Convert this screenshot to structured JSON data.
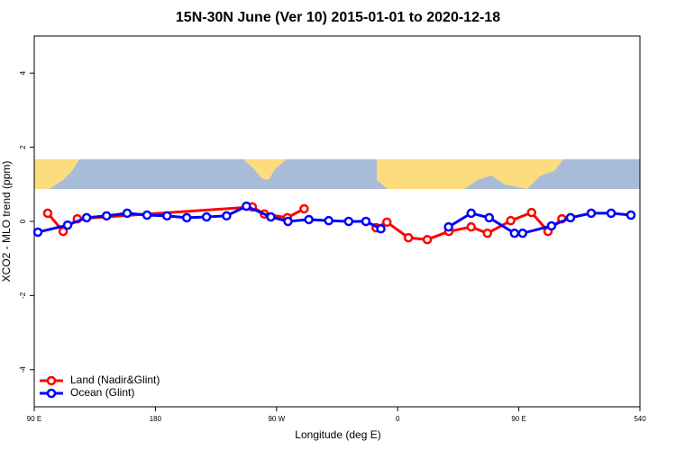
{
  "chart_data": {
    "type": "line",
    "title": "15N-30N June (Ver 10)   2015-01-01 to 2020-12-18",
    "x_label": "Longitude (deg E)",
    "y_label": "XCO2 - MLO trend (ppm)",
    "xlim": [
      90,
      540
    ],
    "xticks": [
      {
        "value": 90,
        "label": "90 E"
      },
      180,
      {
        "value": 270,
        "label": "90 W"
      },
      {
        "value": 360,
        "label": "0"
      },
      {
        "value": 450,
        "label": "90 E"
      },
      540
    ],
    "ylim": [
      -5,
      5
    ],
    "yticks": [
      -4,
      -2,
      0,
      2,
      4
    ],
    "legend": "bottom-left",
    "series": [
      {
        "name": "Land (Nadir&Glint)",
        "color": "#ff0000",
        "x": [
          100,
          111.5,
          122,
          252,
          261,
          278,
          290.5,
          null,
          344,
          352,
          368,
          382,
          398,
          414.6,
          426.7,
          444,
          459.5,
          471.7,
          482
        ],
        "values": [
          0.22,
          -0.27,
          0.07,
          0.39,
          0.2,
          0.1,
          0.34,
          null,
          -0.17,
          -0.02,
          -0.44,
          -0.49,
          -0.27,
          -0.15,
          -0.32,
          0.02,
          0.24,
          -0.27,
          0.07
        ]
      },
      {
        "name": "Ocean (Glint)",
        "color": "#0000ff",
        "x": [
          92.7,
          114.8,
          128.9,
          143.7,
          159,
          173.8,
          188.6,
          203.3,
          218,
          232.9,
          247.6,
          265.8,
          278.5,
          294,
          308.8,
          323.6,
          336.4,
          347.5,
          null,
          397.8,
          414.6,
          428,
          446.8,
          452.8,
          474.3,
          488.4,
          503.8,
          518.6,
          533.3
        ],
        "values": [
          -0.29,
          -0.1,
          0.1,
          0.15,
          0.22,
          0.17,
          0.15,
          0.1,
          0.12,
          0.15,
          0.41,
          0.12,
          0,
          0.05,
          0.02,
          0,
          0,
          -0.2,
          null,
          -0.15,
          0.22,
          0.1,
          -0.32,
          -0.32,
          -0.12,
          0.1,
          0.22,
          0.22,
          0.17
        ]
      }
    ]
  }
}
